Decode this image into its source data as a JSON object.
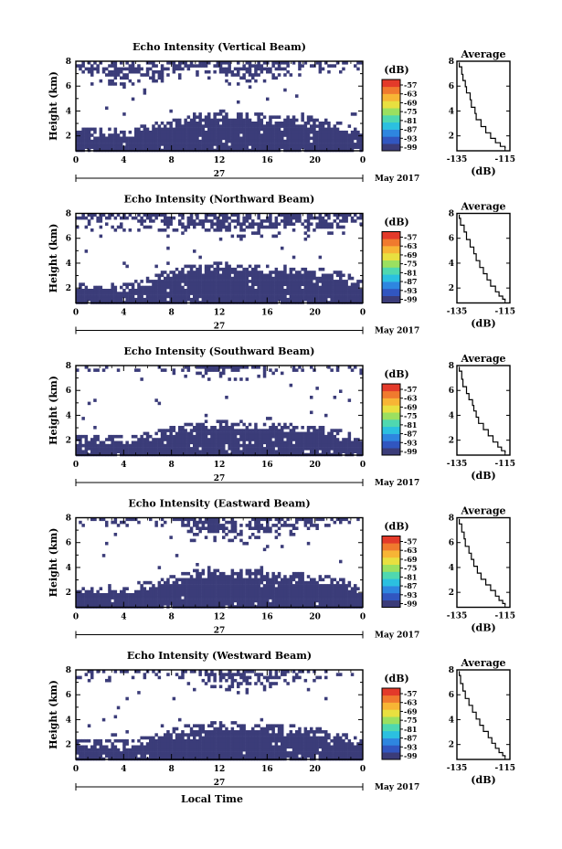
{
  "figure": {
    "bottom_label": "Local Time",
    "date_label": "May 2017",
    "day_label": "27",
    "height_label": "Height (km)",
    "avg_title": "Average",
    "avg_xlabel": "(dB)",
    "cb_unit": "(dB)",
    "colors": {
      "fill": "#3b3c79",
      "scale": [
        "#3b3c79",
        "#3156c0",
        "#2e86e0",
        "#2bc0e0",
        "#4fd8b0",
        "#9be060",
        "#e8e040",
        "#f7b535",
        "#f07a2e",
        "#e33a2a"
      ]
    }
  },
  "chart_data": [
    {
      "type": "heatmap",
      "title": "Echo Intensity (Vertical Beam)",
      "x_ticks": [
        "0",
        "4",
        "8",
        "12",
        "16",
        "20",
        "0"
      ],
      "y_ticks": [
        "2",
        "4",
        "6",
        "8"
      ],
      "xlim": [
        0,
        24
      ],
      "ylim": [
        0.8,
        8
      ],
      "colorbar_ticks": [
        "-57",
        "-63",
        "-69",
        "-75",
        "-81",
        "-87",
        "-93",
        "-99"
      ],
      "upper_layer": {
        "base": [
          6.9,
          6.6,
          6.2,
          6.4,
          6.9,
          7.1,
          6.6,
          6.2,
          6.7,
          7.2,
          7.0,
          7.4,
          7.5
        ]
      },
      "lower_layer": {
        "top": [
          2.6,
          2.5,
          2.4,
          2.8,
          3.2,
          3.7,
          3.9,
          3.8,
          3.6,
          3.5,
          3.4,
          3.0,
          2.2
        ]
      },
      "average_profile": {
        "x_ticks": [
          "-135",
          "-115"
        ],
        "y_ticks": [
          "2",
          "4",
          "6",
          "8"
        ],
        "xlim": [
          -135,
          -113
        ],
        "ylim": [
          0.8,
          8
        ],
        "x": [
          -134,
          -133,
          -132.5,
          -131.5,
          -131,
          -129.5,
          -129,
          -127.5,
          -127,
          -125,
          -123,
          -121,
          -119,
          -117,
          -115
        ],
        "y": [
          7.9,
          7.2,
          6.7,
          6.2,
          5.7,
          5.2,
          4.6,
          4.0,
          3.6,
          3.0,
          2.5,
          2.0,
          1.6,
          1.3,
          1.0
        ]
      }
    },
    {
      "type": "heatmap",
      "title": "Echo Intensity (Northward Beam)",
      "x_ticks": [
        "0",
        "4",
        "8",
        "12",
        "16",
        "20",
        "0"
      ],
      "y_ticks": [
        "2",
        "4",
        "6",
        "8"
      ],
      "xlim": [
        0,
        24
      ],
      "ylim": [
        0.8,
        8
      ],
      "colorbar_ticks": [
        "-57",
        "-63",
        "-69",
        "-75",
        "-81",
        "-87",
        "-93",
        "-99"
      ],
      "upper_layer": {
        "base": [
          7.1,
          6.9,
          6.8,
          7.0,
          6.7,
          6.5,
          6.2,
          6.0,
          6.3,
          6.6,
          6.4,
          6.8,
          7.2
        ]
      },
      "lower_layer": {
        "top": [
          2.3,
          2.4,
          2.2,
          2.8,
          3.5,
          3.8,
          3.9,
          3.8,
          3.7,
          3.6,
          3.5,
          3.2,
          2.4
        ]
      },
      "average_profile": {
        "x_ticks": [
          "-135",
          "-115"
        ],
        "y_ticks": [
          "2",
          "4",
          "6",
          "8"
        ],
        "xlim": [
          -135,
          -113
        ],
        "ylim": [
          0.8,
          8
        ],
        "x": [
          -134,
          -133.5,
          -132,
          -131,
          -129.5,
          -128,
          -127,
          -125.5,
          -124,
          -122.5,
          -121,
          -119,
          -117.5,
          -116,
          -115
        ],
        "y": [
          7.9,
          7.3,
          6.8,
          6.2,
          5.6,
          5.0,
          4.5,
          3.9,
          3.4,
          2.9,
          2.4,
          1.9,
          1.5,
          1.2,
          1.0
        ]
      }
    },
    {
      "type": "heatmap",
      "title": "Echo Intensity (Southward Beam)",
      "x_ticks": [
        "0",
        "4",
        "8",
        "12",
        "16",
        "20",
        "0"
      ],
      "y_ticks": [
        "2",
        "4",
        "6",
        "8"
      ],
      "xlim": [
        0,
        24
      ],
      "ylim": [
        0.8,
        8
      ],
      "colorbar_ticks": [
        "-57",
        "-63",
        "-69",
        "-75",
        "-81",
        "-87",
        "-93",
        "-99"
      ],
      "upper_layer": {
        "base": [
          7.7,
          7.8,
          7.7,
          7.8,
          7.6,
          7.3,
          7.0,
          7.2,
          7.5,
          7.7,
          7.8,
          7.8,
          7.9
        ]
      },
      "lower_layer": {
        "top": [
          2.2,
          2.3,
          2.2,
          2.5,
          3.0,
          3.3,
          3.4,
          3.4,
          3.3,
          3.2,
          3.0,
          2.7,
          2.2
        ]
      },
      "average_profile": {
        "x_ticks": [
          "-135",
          "-115"
        ],
        "y_ticks": [
          "2",
          "4",
          "6",
          "8"
        ],
        "xlim": [
          -135,
          -113
        ],
        "ylim": [
          0.8,
          8
        ],
        "x": [
          -134,
          -133,
          -132.5,
          -131,
          -130,
          -128.5,
          -128,
          -127,
          -126,
          -124,
          -122,
          -120,
          -118,
          -116.5,
          -115
        ],
        "y": [
          7.9,
          7.2,
          6.6,
          6.0,
          5.5,
          5.0,
          4.6,
          4.1,
          3.6,
          3.1,
          2.6,
          2.1,
          1.6,
          1.3,
          1.0
        ]
      }
    },
    {
      "type": "heatmap",
      "title": "Echo Intensity (Eastward Beam)",
      "x_ticks": [
        "0",
        "4",
        "8",
        "12",
        "16",
        "20",
        "0"
      ],
      "y_ticks": [
        "2",
        "4",
        "6",
        "8"
      ],
      "xlim": [
        0,
        24
      ],
      "ylim": [
        0.8,
        8
      ],
      "colorbar_ticks": [
        "-57",
        "-63",
        "-69",
        "-75",
        "-81",
        "-87",
        "-93",
        "-99"
      ],
      "upper_layer": {
        "base": [
          7.6,
          7.7,
          7.7,
          7.8,
          7.5,
          6.8,
          6.4,
          6.2,
          6.5,
          6.9,
          7.3,
          7.7,
          7.9
        ]
      },
      "lower_layer": {
        "top": [
          2.3,
          2.4,
          2.3,
          2.8,
          3.3,
          3.7,
          3.8,
          3.7,
          3.6,
          3.5,
          3.3,
          3.0,
          2.3
        ]
      },
      "average_profile": {
        "x_ticks": [
          "-135",
          "-115"
        ],
        "y_ticks": [
          "2",
          "4",
          "6",
          "8"
        ],
        "xlim": [
          -135,
          -113
        ],
        "ylim": [
          0.8,
          8
        ],
        "x": [
          -134,
          -133,
          -132,
          -131.5,
          -130,
          -129,
          -128,
          -126.5,
          -125,
          -123,
          -121,
          -119,
          -117.5,
          -116,
          -115
        ],
        "y": [
          7.9,
          7.1,
          6.6,
          6.0,
          5.4,
          4.9,
          4.4,
          3.8,
          3.3,
          2.8,
          2.4,
          1.9,
          1.5,
          1.2,
          1.0
        ]
      }
    },
    {
      "type": "heatmap",
      "title": "Echo Intensity (Westward Beam)",
      "x_ticks": [
        "0",
        "4",
        "8",
        "12",
        "16",
        "20",
        "0"
      ],
      "y_ticks": [
        "2",
        "4",
        "6",
        "8"
      ],
      "xlim": [
        0,
        24
      ],
      "ylim": [
        0.8,
        8
      ],
      "colorbar_ticks": [
        "-57",
        "-63",
        "-69",
        "-75",
        "-81",
        "-87",
        "-93",
        "-99"
      ],
      "upper_layer": {
        "base": [
          7.6,
          7.4,
          7.5,
          7.7,
          7.6,
          7.2,
          6.6,
          6.4,
          6.8,
          7.2,
          7.5,
          7.8,
          7.9
        ]
      },
      "lower_layer": {
        "top": [
          2.2,
          2.3,
          2.2,
          2.6,
          3.2,
          3.6,
          3.7,
          3.6,
          3.5,
          3.4,
          3.2,
          2.9,
          2.2
        ]
      },
      "average_profile": {
        "x_ticks": [
          "-135",
          "-115"
        ],
        "y_ticks": [
          "2",
          "4",
          "6",
          "8"
        ],
        "xlim": [
          -135,
          -113
        ],
        "ylim": [
          0.8,
          8
        ],
        "x": [
          -134,
          -133.5,
          -132.5,
          -131.5,
          -130,
          -128.5,
          -127,
          -125.5,
          -124,
          -122,
          -120.5,
          -119,
          -117.5,
          -116,
          -115
        ],
        "y": [
          7.9,
          7.2,
          6.6,
          6.0,
          5.4,
          4.9,
          4.3,
          3.8,
          3.3,
          2.8,
          2.3,
          1.9,
          1.5,
          1.2,
          1.0
        ]
      }
    }
  ]
}
